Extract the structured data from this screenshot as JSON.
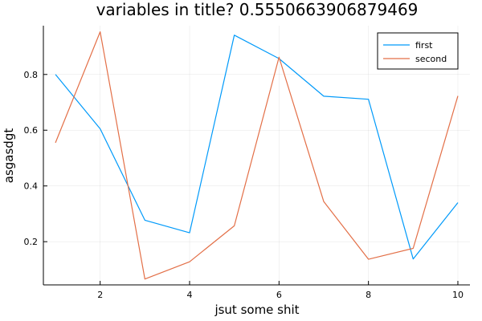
{
  "chart_data": {
    "type": "line",
    "title": "variables in title? 0.5550663906879469",
    "xlabel": "jsut some shit",
    "ylabel": "asgasdgt",
    "x": [
      1,
      2,
      3,
      4,
      5,
      6,
      7,
      8,
      9,
      10
    ],
    "xticks": [
      2,
      4,
      6,
      8,
      10
    ],
    "yticks": [
      0.2,
      0.4,
      0.6,
      0.8
    ],
    "xlim": [
      0.73,
      10.27
    ],
    "ylim": [
      0.045,
      0.975
    ],
    "grid": true,
    "legend_position": "top-right",
    "series": [
      {
        "name": "first",
        "color": "#009AFA",
        "values": [
          0.8,
          0.605,
          0.277,
          0.232,
          0.941,
          0.857,
          0.722,
          0.711,
          0.138,
          0.34
        ]
      },
      {
        "name": "second",
        "color": "#E36F47",
        "values": [
          0.555,
          0.953,
          0.066,
          0.128,
          0.257,
          0.862,
          0.344,
          0.137,
          0.176,
          0.723
        ]
      }
    ]
  }
}
